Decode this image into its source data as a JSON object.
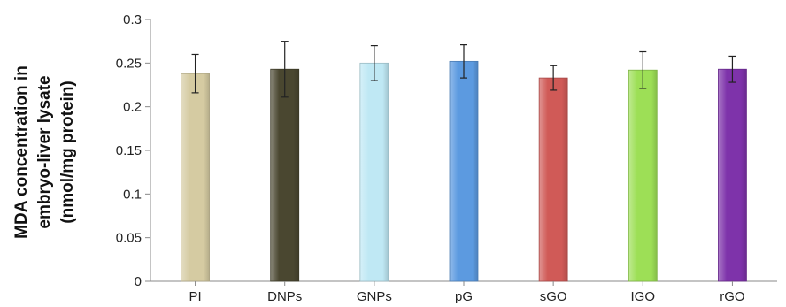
{
  "chart_data": {
    "type": "bar",
    "categories": [
      "PI",
      "DNPs",
      "GNPs",
      "pG",
      "sGO",
      "IGO",
      "rGO"
    ],
    "values": [
      0.238,
      0.243,
      0.25,
      0.252,
      0.233,
      0.242,
      0.243
    ],
    "errors": [
      0.022,
      0.032,
      0.02,
      0.019,
      0.014,
      0.021,
      0.015
    ],
    "colors": [
      "#d5cba2",
      "#4a4730",
      "#bfe8f4",
      "#5c9ae0",
      "#d05a57",
      "#9ddf56",
      "#7e33aa"
    ],
    "ylabel_lines": [
      "MDA concentration in",
      "embryo-liver lysate",
      "(nmol/mg protein)"
    ],
    "ylim": [
      0,
      0.3
    ],
    "yticks": [
      "0",
      "0.05",
      "0.1",
      "0.15",
      "0.2",
      "0.25",
      "0.3"
    ],
    "grid": false,
    "legend": "none"
  }
}
